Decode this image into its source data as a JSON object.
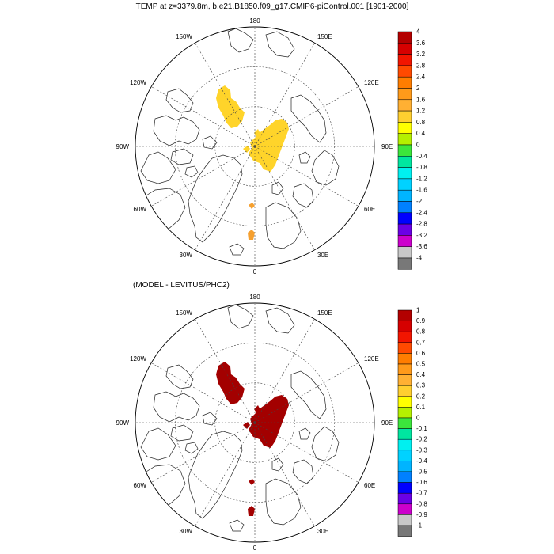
{
  "main_title": "TEMP at z=3379.8m, b.e21.B1850.f09_g17.CMIP6-piControl.001 [1901-2000]",
  "panels": [
    {
      "title": "",
      "lon_labels": {
        "top": "180",
        "bottom": "0",
        "right": "90E",
        "left": "90W",
        "ur1": "150E",
        "ur2": "120E",
        "lr1": "60E",
        "lr2": "30E",
        "ul1": "150W",
        "ul2": "120W",
        "ll1": "60W",
        "ll2": "30W"
      },
      "fill_color": "#ffd42a",
      "small_fill_color": "#f5a030",
      "colorbar": {
        "labels": [
          "4",
          "3.6",
          "3.2",
          "2.8",
          "2.4",
          "2",
          "1.6",
          "1.2",
          "0.8",
          "0.4",
          "0",
          "-0.4",
          "-0.8",
          "-1.2",
          "-1.6",
          "-2",
          "-2.4",
          "-2.8",
          "-3.2",
          "-3.6",
          "-4"
        ],
        "colors": [
          "#b30000",
          "#d60000",
          "#f21500",
          "#ff4a00",
          "#ff7d00",
          "#ff9a1a",
          "#ffb033",
          "#ffcf30",
          "#ffff00",
          "#b4f000",
          "#3ce63c",
          "#00e6a0",
          "#00f0f0",
          "#00d2ff",
          "#00b4ff",
          "#0080ff",
          "#0000ff",
          "#6a00e6",
          "#cc00cc",
          "#c8c8c8",
          "#787878"
        ]
      }
    },
    {
      "title": "(MODEL - LEVITUS/PHC2)",
      "lon_labels": {
        "top": "180",
        "bottom": "0",
        "right": "90E",
        "left": "90W",
        "ur1": "150E",
        "ur2": "120E",
        "lr1": "60E",
        "lr2": "30E",
        "ul1": "150W",
        "ul2": "120W",
        "ll1": "60W",
        "ll2": "30W"
      },
      "fill_color": "#a30000",
      "small_fill_color": "#a30000",
      "colorbar": {
        "labels": [
          "1",
          "0.9",
          "0.8",
          "0.7",
          "0.6",
          "0.5",
          "0.4",
          "0.3",
          "0.2",
          "0.1",
          "0",
          "-0.1",
          "-0.2",
          "-0.3",
          "-0.4",
          "-0.5",
          "-0.6",
          "-0.7",
          "-0.8",
          "-0.9",
          "-1"
        ],
        "colors": [
          "#b30000",
          "#d60000",
          "#f21500",
          "#ff4a00",
          "#ff7d00",
          "#ff9a1a",
          "#ffb033",
          "#ffcf30",
          "#ffff00",
          "#b4f000",
          "#3ce63c",
          "#00e6a0",
          "#00f0f0",
          "#00d2ff",
          "#00b4ff",
          "#0080ff",
          "#0000ff",
          "#6a00e6",
          "#cc00cc",
          "#c8c8c8",
          "#787878"
        ]
      }
    }
  ]
}
